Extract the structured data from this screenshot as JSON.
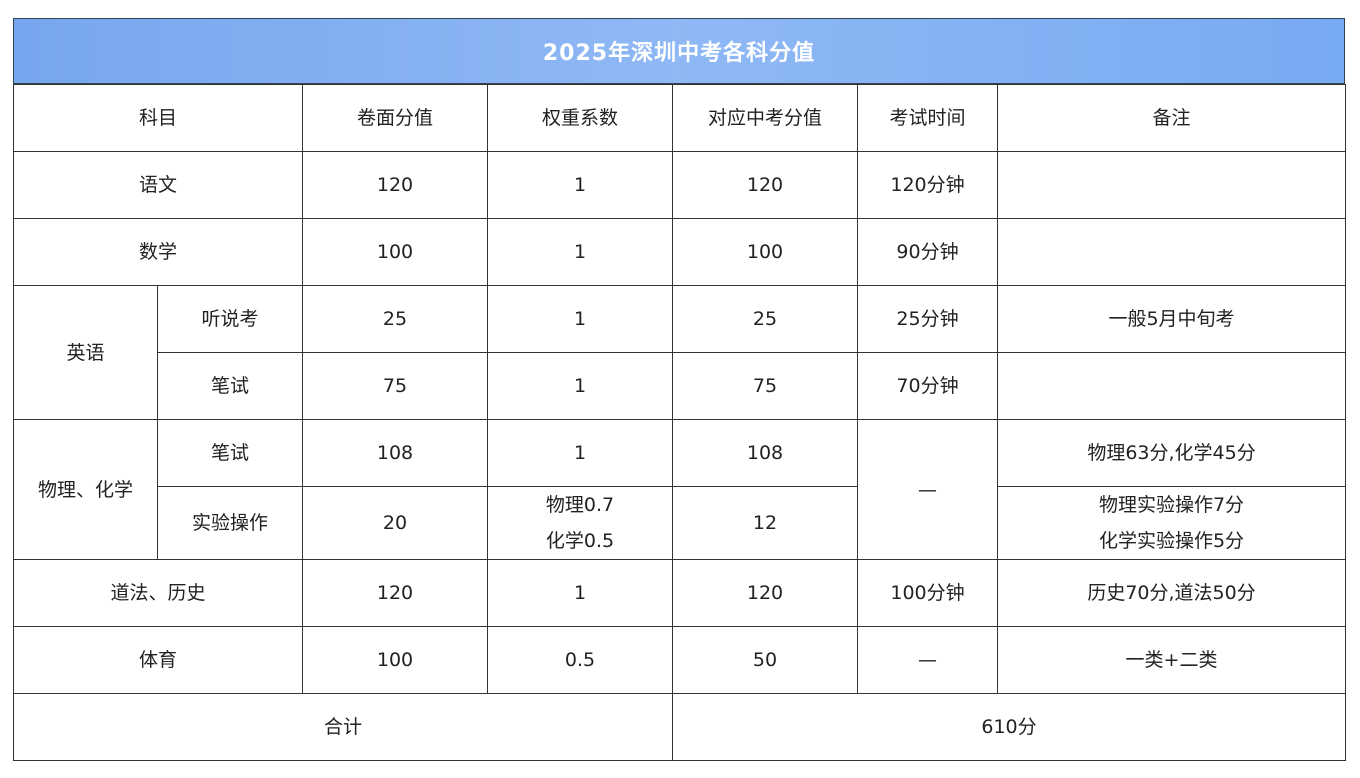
{
  "title": "2025年深圳中考各科分值",
  "headers": [
    "科目",
    "卷面分值",
    "权重系数",
    "对应中考分值",
    "考试时间",
    "备注"
  ],
  "rows": {
    "chinese": {
      "subject": "语文",
      "score": "120",
      "weight": "1",
      "value": "120",
      "time": "120分钟",
      "note": ""
    },
    "math": {
      "subject": "数学",
      "score": "100",
      "weight": "1",
      "value": "100",
      "time": "90分钟",
      "note": ""
    },
    "english": {
      "subject": "英语",
      "listening": {
        "sub": "听说考",
        "score": "25",
        "weight": "1",
        "value": "25",
        "time": "25分钟",
        "note": "一般5月中旬考"
      },
      "written": {
        "sub": "笔试",
        "score": "75",
        "weight": "1",
        "value": "75",
        "time": "70分钟",
        "note": ""
      }
    },
    "phychem": {
      "subject": "物理、化学",
      "time": "—",
      "written": {
        "sub": "笔试",
        "score": "108",
        "weight": "1",
        "value": "108",
        "note": "物理63分,化学45分"
      },
      "lab": {
        "sub": "实验操作",
        "score": "20",
        "weight1": "物理0.7",
        "weight2": "化学0.5",
        "value": "12",
        "note1": "物理实验操作7分",
        "note2": "化学实验操作5分"
      }
    },
    "history": {
      "subject": "道法、历史",
      "score": "120",
      "weight": "1",
      "value": "120",
      "time": "100分钟",
      "note": "历史70分,道法50分"
    },
    "pe": {
      "subject": "体育",
      "score": "100",
      "weight": "0.5",
      "value": "50",
      "time": "—",
      "note": "一类+二类"
    }
  },
  "total": {
    "label": "合计",
    "value": "610分"
  }
}
